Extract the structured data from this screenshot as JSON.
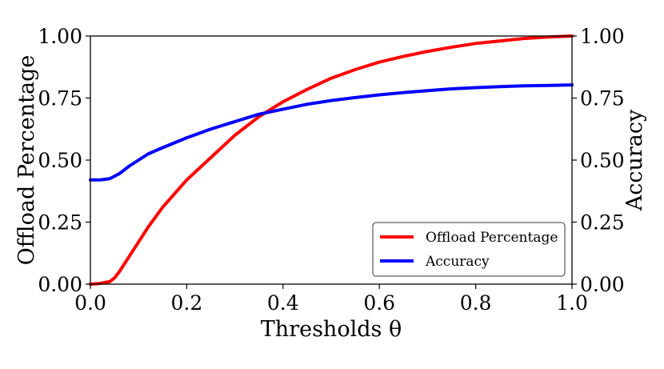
{
  "chart_data": {
    "type": "line",
    "title": "",
    "xlabel": "Thresholds θ",
    "ylabel_left": "Offload Percentage",
    "ylabel_right": "Accuracy",
    "xlim": [
      0.0,
      1.0
    ],
    "ylim_left": [
      0.0,
      1.0
    ],
    "ylim_right": [
      0.0,
      1.0
    ],
    "x_ticks": [
      "0.0",
      "0.2",
      "0.4",
      "0.6",
      "0.8",
      "1.0"
    ],
    "y_ticks_left": [
      "0.00",
      "0.25",
      "0.50",
      "0.75",
      "1.00"
    ],
    "y_ticks_right": [
      "0.00",
      "0.25",
      "0.50",
      "0.75",
      "1.00"
    ],
    "grid": false,
    "legend_position": "bottom-right",
    "series": [
      {
        "name": "Offload Percentage",
        "color": "#ff0000",
        "axis": "left",
        "x": [
          0.0,
          0.02,
          0.04,
          0.05,
          0.06,
          0.08,
          0.1,
          0.12,
          0.15,
          0.2,
          0.25,
          0.3,
          0.35,
          0.4,
          0.45,
          0.5,
          0.55,
          0.6,
          0.65,
          0.7,
          0.75,
          0.8,
          0.85,
          0.9,
          0.95,
          1.0
        ],
        "values": [
          0.0,
          0.003,
          0.01,
          0.025,
          0.05,
          0.11,
          0.17,
          0.23,
          0.31,
          0.42,
          0.51,
          0.6,
          0.675,
          0.735,
          0.785,
          0.83,
          0.865,
          0.895,
          0.918,
          0.938,
          0.955,
          0.97,
          0.98,
          0.99,
          0.996,
          1.0
        ]
      },
      {
        "name": "Accuracy",
        "color": "#0000ff",
        "axis": "right",
        "x": [
          0.0,
          0.02,
          0.04,
          0.06,
          0.08,
          0.1,
          0.12,
          0.15,
          0.2,
          0.25,
          0.3,
          0.35,
          0.4,
          0.45,
          0.5,
          0.55,
          0.6,
          0.65,
          0.7,
          0.75,
          0.8,
          0.85,
          0.9,
          0.95,
          1.0
        ],
        "values": [
          0.42,
          0.42,
          0.425,
          0.445,
          0.475,
          0.5,
          0.525,
          0.55,
          0.59,
          0.625,
          0.655,
          0.685,
          0.705,
          0.725,
          0.74,
          0.752,
          0.763,
          0.772,
          0.78,
          0.787,
          0.792,
          0.796,
          0.799,
          0.801,
          0.803
        ]
      }
    ]
  }
}
